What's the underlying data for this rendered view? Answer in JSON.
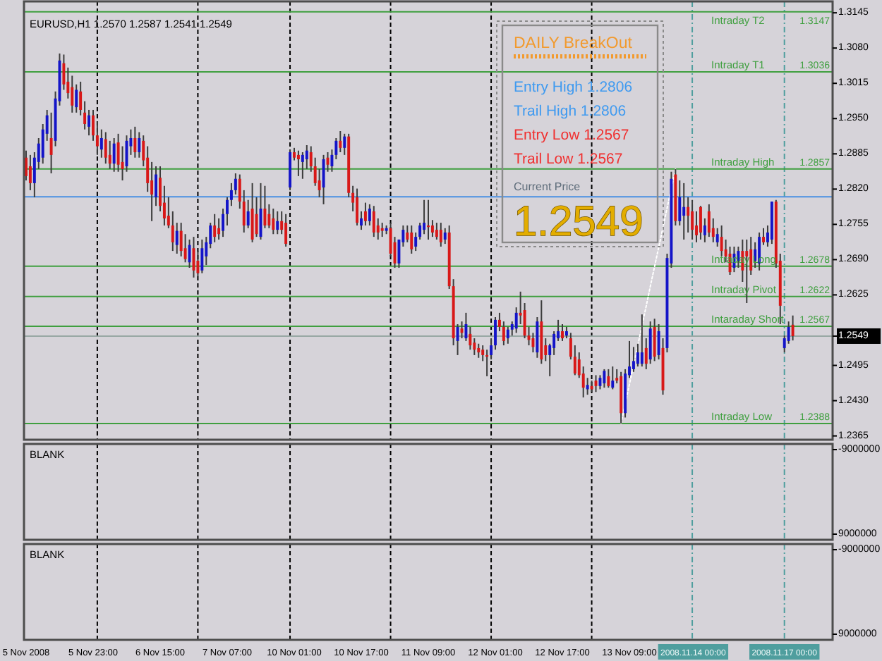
{
  "chart_data": [
    {
      "type": "candlestick",
      "title": "EURUSD,H1 1.2570 1.2587 1.2541 1.2549",
      "categories": [
        null,
        null,
        null,
        null,
        null,
        null,
        null,
        null,
        null,
        null,
        null,
        null,
        null,
        null,
        null,
        null,
        null,
        null,
        null,
        null,
        null,
        null,
        null,
        null,
        null,
        null,
        null,
        null,
        null,
        null,
        null,
        null,
        null,
        null,
        null,
        null,
        null,
        null,
        null,
        null,
        null,
        null,
        null,
        null,
        null,
        null,
        null,
        null,
        null,
        null,
        null,
        null,
        null,
        null,
        null,
        null,
        null,
        null,
        null,
        null,
        null,
        null,
        null,
        null,
        null,
        null,
        null,
        null,
        null,
        null,
        null,
        null,
        null,
        null,
        null,
        null,
        null,
        null,
        null,
        null,
        null,
        null,
        null,
        null,
        null,
        null,
        null,
        null,
        null,
        null,
        null,
        null,
        null,
        null,
        null,
        null,
        null,
        null,
        null,
        null,
        null,
        null,
        null,
        null,
        null,
        null,
        null,
        null,
        null,
        null,
        null,
        null,
        null,
        null,
        null,
        null,
        null,
        null,
        null,
        null,
        null,
        null,
        null,
        null,
        null,
        null,
        null,
        null,
        null,
        null,
        null,
        null,
        null,
        null,
        null,
        null,
        null,
        null,
        null,
        null,
        null,
        null,
        null,
        null,
        null,
        null,
        null,
        null,
        null,
        null,
        null,
        null,
        null,
        null,
        null,
        null,
        null,
        null,
        null,
        null,
        null,
        null,
        null,
        null,
        null,
        null,
        null,
        null,
        null,
        null,
        null,
        null,
        null,
        null,
        null,
        null,
        null,
        null,
        null,
        null,
        null,
        null,
        null,
        null,
        null,
        null,
        null,
        null,
        null,
        null,
        null,
        null,
        null
      ],
      "ohlc": [
        [
          1.2878,
          1.2891,
          1.2836,
          1.2844
        ],
        [
          1.2862,
          1.2883,
          1.2818,
          1.2831
        ],
        [
          1.2831,
          1.2888,
          1.2805,
          1.2878
        ],
        [
          1.287,
          1.2914,
          1.2857,
          1.2904
        ],
        [
          1.2878,
          1.294,
          1.2867,
          1.293
        ],
        [
          1.2922,
          1.2966,
          1.2909,
          1.2956
        ],
        [
          1.2914,
          1.2961,
          1.2849,
          1.2883
        ],
        [
          1.2909,
          1.3,
          1.2899,
          1.2987
        ],
        [
          1.2982,
          1.307,
          1.2974,
          1.3057
        ],
        [
          1.3052,
          1.3068,
          1.3003,
          1.3013
        ],
        [
          1.3018,
          1.3044,
          1.2987,
          1.2997
        ],
        [
          1.3008,
          1.3029,
          1.2961,
          1.2974
        ],
        [
          1.2971,
          1.3013,
          1.2961,
          1.3003
        ],
        [
          1.3,
          1.3018,
          1.2956,
          1.2966
        ],
        [
          1.2961,
          1.2982,
          1.293,
          1.294
        ],
        [
          1.2935,
          1.2966,
          1.2919,
          1.2956
        ],
        [
          1.2956,
          1.2966,
          1.2909,
          1.2919
        ],
        [
          1.2919,
          1.2945,
          1.2883,
          1.2899
        ],
        [
          1.2893,
          1.293,
          1.2878,
          1.2914
        ],
        [
          1.2912,
          1.2925,
          1.2867,
          1.2878
        ],
        [
          1.2883,
          1.2909,
          1.2857,
          1.2867
        ],
        [
          1.2867,
          1.2914,
          1.2852,
          1.2904
        ],
        [
          1.2906,
          1.2922,
          1.2852,
          1.2865
        ],
        [
          1.287,
          1.2899,
          1.2836,
          1.2857
        ],
        [
          1.2862,
          1.2919,
          1.2852,
          1.2909
        ],
        [
          1.2899,
          1.293,
          1.2883,
          1.2914
        ],
        [
          1.2914,
          1.2935,
          1.2878,
          1.2888
        ],
        [
          1.2888,
          1.2925,
          1.2878,
          1.2914
        ],
        [
          1.2909,
          1.2919,
          1.2862,
          1.2873
        ],
        [
          1.2878,
          1.2899,
          1.2815,
          1.2831
        ],
        [
          1.2836,
          1.287,
          1.2761,
          1.281
        ],
        [
          1.2805,
          1.2862,
          1.2789,
          1.2847
        ],
        [
          1.2841,
          1.2862,
          1.2779,
          1.2789
        ],
        [
          1.2795,
          1.2826,
          1.2753,
          1.2766
        ],
        [
          1.2771,
          1.2805,
          1.2748,
          1.2753
        ],
        [
          1.2753,
          1.2779,
          1.2706,
          1.2722
        ],
        [
          1.2717,
          1.2758,
          1.2701,
          1.2743
        ],
        [
          1.2743,
          1.2758,
          1.2696,
          1.2706
        ],
        [
          1.2711,
          1.2737,
          1.2685,
          1.2691
        ],
        [
          1.2685,
          1.2727,
          1.2675,
          1.2717
        ],
        [
          1.2711,
          1.2732,
          1.2657,
          1.267
        ],
        [
          1.2688,
          1.2706,
          1.2659,
          1.2665
        ],
        [
          1.267,
          1.2727,
          1.2665,
          1.2711
        ],
        [
          1.2696,
          1.2732,
          1.268,
          1.2722
        ],
        [
          1.2719,
          1.2758,
          1.2711,
          1.2753
        ],
        [
          1.2753,
          1.2774,
          1.2722,
          1.2732
        ],
        [
          1.2748,
          1.2766,
          1.2727,
          1.2737
        ],
        [
          1.2743,
          1.2784,
          1.2732,
          1.2774
        ],
        [
          1.2774,
          1.2805,
          1.2753,
          1.28
        ],
        [
          1.28,
          1.2831,
          1.2789,
          1.2818
        ],
        [
          1.2818,
          1.2849,
          1.281,
          1.2839
        ],
        [
          1.2839,
          1.2847,
          1.2784,
          1.2797
        ],
        [
          1.2797,
          1.2818,
          1.274,
          1.2753
        ],
        [
          1.2753,
          1.28,
          1.2748,
          1.2779
        ],
        [
          1.2784,
          1.2831,
          1.2722,
          1.2727
        ],
        [
          1.2774,
          1.2805,
          1.2732,
          1.2737
        ],
        [
          1.2732,
          1.2831,
          1.2727,
          1.2784
        ],
        [
          1.2784,
          1.2826,
          1.2748,
          1.2753
        ],
        [
          1.2774,
          1.2792,
          1.2748,
          1.2753
        ],
        [
          1.2766,
          1.2784,
          1.2737,
          1.2745
        ],
        [
          1.2745,
          1.2779,
          1.2737,
          1.2761
        ],
        [
          1.2761,
          1.2779,
          1.2737,
          1.2745
        ],
        [
          1.2758,
          1.2774,
          1.2714,
          1.2719
        ],
        [
          1.2823,
          1.2893,
          1.2818,
          1.2888
        ],
        [
          1.2888,
          1.2896,
          1.2873,
          1.2878
        ],
        [
          1.2883,
          1.2891,
          1.2844,
          1.2875
        ],
        [
          1.287,
          1.2888,
          1.2839,
          1.2883
        ],
        [
          1.2875,
          1.2901,
          1.2857,
          1.2891
        ],
        [
          1.2888,
          1.2899,
          1.2852,
          1.2862
        ],
        [
          1.2862,
          1.2878,
          1.2826,
          1.2831
        ],
        [
          1.2836,
          1.2857,
          1.2805,
          1.2818
        ],
        [
          1.2823,
          1.2883,
          1.2792,
          1.2875
        ],
        [
          1.2878,
          1.2888,
          1.2852,
          1.2865
        ],
        [
          1.2862,
          1.2893,
          1.2852,
          1.2883
        ],
        [
          1.2883,
          1.2914,
          1.2875,
          1.2909
        ],
        [
          1.2909,
          1.2927,
          1.2888,
          1.2896
        ],
        [
          1.2896,
          1.2922,
          1.2883,
          1.2917
        ],
        [
          1.2917,
          1.2922,
          1.2805,
          1.2813
        ],
        [
          1.2813,
          1.2826,
          1.2779,
          1.2795
        ],
        [
          1.2805,
          1.2821,
          1.2753,
          1.2758
        ],
        [
          1.2753,
          1.2779,
          1.2745,
          1.2766
        ],
        [
          1.2779,
          1.2795,
          1.2753,
          1.2761
        ],
        [
          1.2761,
          1.2792,
          1.2753,
          1.2784
        ],
        [
          1.2779,
          1.2789,
          1.2732,
          1.274
        ],
        [
          1.2753,
          1.2766,
          1.2727,
          1.274
        ],
        [
          1.2748,
          1.2758,
          1.2732,
          1.2743
        ],
        [
          1.2743,
          1.2753,
          1.2737,
          1.2748
        ],
        [
          1.2748,
          1.2758,
          1.2696,
          1.2701
        ],
        [
          1.2722,
          1.2732,
          1.2675,
          1.2683
        ],
        [
          1.2683,
          1.2727,
          1.2675,
          1.2727
        ],
        [
          1.2722,
          1.2753,
          1.2714,
          1.2745
        ],
        [
          1.274,
          1.2753,
          1.2722,
          1.2727
        ],
        [
          1.274,
          1.2753,
          1.2701,
          1.2709
        ],
        [
          1.2714,
          1.274,
          1.2706,
          1.2732
        ],
        [
          1.2732,
          1.2758,
          1.2727,
          1.2753
        ],
        [
          1.2745,
          1.28,
          1.2737,
          1.2758
        ],
        [
          1.2753,
          1.28,
          1.2727,
          1.275
        ],
        [
          1.2753,
          1.2763,
          1.2732,
          1.274
        ],
        [
          1.2745,
          1.2758,
          1.2727,
          1.2732
        ],
        [
          1.2745,
          1.2758,
          1.2714,
          1.2722
        ],
        [
          1.2727,
          1.2748,
          1.2719,
          1.274
        ],
        [
          1.274,
          1.2753,
          1.2636,
          1.2641
        ],
        [
          1.2641,
          1.2654,
          1.2532,
          1.2545
        ],
        [
          1.254,
          1.2571,
          1.2514,
          1.2566
        ],
        [
          1.2563,
          1.2576,
          1.2545,
          1.2555
        ],
        [
          1.2545,
          1.2592,
          1.254,
          1.2571
        ],
        [
          1.2553,
          1.2566,
          1.2524,
          1.2532
        ],
        [
          1.2537,
          1.2545,
          1.2514,
          1.2524
        ],
        [
          1.2527,
          1.2535,
          1.2509,
          1.2519
        ],
        [
          1.2524,
          1.2532,
          1.2503,
          1.2514
        ],
        [
          1.2514,
          1.2524,
          1.2475,
          1.2511
        ],
        [
          1.2514,
          1.2545,
          1.2506,
          1.2532
        ],
        [
          1.2532,
          1.2584,
          1.2524,
          1.2579
        ],
        [
          1.2579,
          1.2592,
          1.2558,
          1.2566
        ],
        [
          1.2566,
          1.2576,
          1.2532,
          1.254
        ],
        [
          1.2545,
          1.2566,
          1.2535,
          1.2561
        ],
        [
          1.2561,
          1.2576,
          1.255,
          1.2571
        ],
        [
          1.2563,
          1.2602,
          1.2555,
          1.2592
        ],
        [
          1.2592,
          1.2631,
          1.2571,
          1.2587
        ],
        [
          1.2597,
          1.261,
          1.2545,
          1.255
        ],
        [
          1.255,
          1.2566,
          1.2532,
          1.2542
        ],
        [
          1.2545,
          1.2555,
          1.2519,
          1.2529
        ],
        [
          1.2519,
          1.2584,
          1.2509,
          1.2576
        ],
        [
          1.2576,
          1.2615,
          1.2498,
          1.2506
        ],
        [
          1.2532,
          1.2545,
          1.2503,
          1.2514
        ],
        [
          1.2514,
          1.2535,
          1.2475,
          1.2532
        ],
        [
          1.2527,
          1.2558,
          1.2514,
          1.2553
        ],
        [
          1.2545,
          1.2579,
          1.254,
          1.2558
        ],
        [
          1.2558,
          1.2571,
          1.254,
          1.2545
        ],
        [
          1.255,
          1.2566,
          1.2545,
          1.2558
        ],
        [
          1.2545,
          1.2555,
          1.2506,
          1.2511
        ],
        [
          1.2511,
          1.2532,
          1.2477,
          1.248
        ],
        [
          1.2506,
          1.2519,
          1.2472,
          1.2477
        ],
        [
          1.248,
          1.2493,
          1.2436,
          1.2454
        ],
        [
          1.2451,
          1.2472,
          1.2441,
          1.2459
        ],
        [
          1.2457,
          1.2467,
          1.2446,
          1.2451
        ],
        [
          1.2467,
          1.2477,
          1.2446,
          1.2457
        ],
        [
          1.2457,
          1.2477,
          1.2451,
          1.2472
        ],
        [
          1.2462,
          1.2488,
          1.2454,
          1.2485
        ],
        [
          1.2475,
          1.2488,
          1.2454,
          1.2457
        ],
        [
          1.2454,
          1.2493,
          1.2451,
          1.2467
        ],
        [
          1.2472,
          1.2488,
          1.2462,
          1.2467
        ],
        [
          1.2475,
          1.2483,
          1.2388,
          1.2407
        ],
        [
          1.2407,
          1.2488,
          1.2399,
          1.248
        ],
        [
          1.2477,
          1.254,
          1.2472,
          1.2493
        ],
        [
          1.2488,
          1.2529,
          1.2483,
          1.2503
        ],
        [
          1.2498,
          1.2535,
          1.2493,
          1.2519
        ],
        [
          1.2498,
          1.2589,
          1.2493,
          1.2519
        ],
        [
          1.2527,
          1.2545,
          1.2488,
          1.2498
        ],
        [
          1.2506,
          1.2576,
          1.2498,
          1.2563
        ],
        [
          1.2566,
          1.2581,
          1.2503,
          1.2511
        ],
        [
          1.2514,
          1.2571,
          1.2506,
          1.2558
        ],
        [
          1.2527,
          1.2545,
          1.2441,
          1.2449
        ],
        [
          1.2527,
          1.2701,
          1.2519,
          1.2693
        ],
        [
          1.2683,
          1.2852,
          1.2675,
          1.2839
        ],
        [
          1.2847,
          1.2857,
          1.2753,
          1.2761
        ],
        [
          1.2761,
          1.2836,
          1.2753,
          1.2805
        ],
        [
          1.2771,
          1.2831,
          1.2727,
          1.2787
        ],
        [
          1.2787,
          1.2805,
          1.274,
          1.2771
        ],
        [
          1.2779,
          1.28,
          1.2727,
          1.2745
        ],
        [
          1.2753,
          1.2779,
          1.2722,
          1.2735
        ],
        [
          1.2787,
          1.2789,
          1.2727,
          1.274
        ],
        [
          1.2735,
          1.2766,
          1.2722,
          1.2753
        ],
        [
          1.2779,
          1.2792,
          1.2732,
          1.274
        ],
        [
          1.2748,
          1.2766,
          1.2722,
          1.2732
        ],
        [
          1.2722,
          1.2748,
          1.2714,
          1.2737
        ],
        [
          1.2732,
          1.2753,
          1.2696,
          1.2706
        ],
        [
          1.2709,
          1.2727,
          1.2685,
          1.2696
        ],
        [
          1.2701,
          1.2714,
          1.2662,
          1.2667
        ],
        [
          1.2675,
          1.2714,
          1.2667,
          1.2701
        ],
        [
          1.2688,
          1.2714,
          1.2675,
          1.2706
        ],
        [
          1.2706,
          1.2727,
          1.2649,
          1.267
        ],
        [
          1.2706,
          1.2727,
          1.261,
          1.2696
        ],
        [
          1.2709,
          1.2732,
          1.2662,
          1.267
        ],
        [
          1.2688,
          1.2722,
          1.2675,
          1.2709
        ],
        [
          1.2683,
          1.274,
          1.267,
          1.2732
        ],
        [
          1.2732,
          1.2748,
          1.2717,
          1.2722
        ],
        [
          1.2722,
          1.2753,
          1.2714,
          1.274
        ],
        [
          1.2727,
          1.2797,
          1.2719,
          1.2797
        ],
        [
          1.2797,
          1.28,
          1.2675,
          1.2683
        ],
        [
          1.2688,
          1.2701,
          1.2571,
          1.2605
        ],
        [
          1.2527,
          1.255,
          1.2519,
          1.2545
        ],
        [
          1.254,
          1.2576,
          1.2535,
          1.2566
        ],
        [
          1.257,
          1.2587,
          1.2541,
          1.2549
        ],
        null,
        null,
        null,
        null,
        null,
        null,
        null,
        null,
        null
      ],
      "colors": [
        "#d81818",
        "#d81818",
        "#1414c8",
        "#1414c8",
        "#1414c8",
        "#1414c8",
        "#d81818",
        "#1414c8",
        "#1414c8",
        "#d81818",
        "#d81818",
        "#d81818",
        "#1414c8",
        "#d81818",
        "#d81818",
        "#1414c8",
        "#d81818",
        "#d81818",
        "#1414c8",
        "#d81818",
        "#d81818",
        "#1414c8",
        "#d81818",
        "#d81818",
        "#1414c8",
        "#1414c8",
        "#d81818",
        "#1414c8",
        "#d81818",
        "#d81818",
        "#d81818",
        "#1414c8",
        "#d81818",
        "#d81818",
        "#d81818",
        "#d81818",
        "#1414c8",
        "#d81818",
        "#d81818",
        "#1414c8",
        "#d81818",
        "#d81818",
        "#1414c8",
        "#1414c8",
        "#1414c8",
        "#d81818",
        "#d81818",
        "#1414c8",
        "#1414c8",
        "#1414c8",
        "#1414c8",
        "#d81818",
        "#d81818",
        "#1414c8",
        "#d81818",
        "#d81818",
        "#1414c8",
        "#d81818",
        "#d81818",
        "#d81818",
        "#1414c8",
        "#d81818",
        "#d81818",
        "#1414c8",
        "#d81818",
        "#d81818",
        "#1414c8",
        "#1414c8",
        "#d81818",
        "#d81818",
        "#d81818",
        "#1414c8",
        "#d81818",
        "#1414c8",
        "#1414c8",
        "#d81818",
        "#1414c8",
        "#d81818",
        "#d81818",
        "#d81818",
        "#1414c8",
        "#d81818",
        "#1414c8",
        "#d81818",
        "#d81818",
        "#d81818",
        "#1414c8",
        "#d81818",
        "#d81818",
        "#1414c8",
        "#1414c8",
        "#d81818",
        "#d81818",
        "#1414c8",
        "#1414c8",
        "#1414c8",
        "#d81818",
        "#d81818",
        "#d81818",
        "#d81818",
        "#1414c8",
        "#d81818",
        "#d81818",
        "#1414c8",
        "#d81818",
        "#1414c8",
        "#d81818",
        "#d81818",
        "#d81818",
        "#d81818",
        "#d81818",
        "#1414c8",
        "#1414c8",
        "#d81818",
        "#d81818",
        "#1414c8",
        "#1414c8",
        "#1414c8",
        "#d81818",
        "#d81818",
        "#d81818",
        "#d81818",
        "#1414c8",
        "#d81818",
        "#d81818",
        "#1414c8",
        "#1414c8",
        "#1414c8",
        "#d81818",
        "#1414c8",
        "#d81818",
        "#d81818",
        "#d81818",
        "#d81818",
        "#1414c8",
        "#d81818",
        "#d81818",
        "#1414c8",
        "#1414c8",
        "#d81818",
        "#1414c8",
        "#d81818",
        "#d81818",
        "#1414c8",
        "#1414c8",
        "#1414c8",
        "#1414c8",
        "#1414c8",
        "#d81818",
        "#1414c8",
        "#d81818",
        "#1414c8",
        "#d81818",
        "#1414c8",
        "#1414c8",
        "#d81818",
        "#1414c8",
        "#1414c8",
        "#d81818",
        "#d81818",
        "#d81818",
        "#d81818",
        "#1414c8",
        "#d81818",
        "#d81818",
        "#1414c8",
        "#d81818",
        "#d81818",
        "#d81818",
        "#1414c8",
        "#1414c8",
        "#d81818",
        "#d81818",
        "#d81818",
        "#1414c8",
        "#1414c8",
        "#d81818",
        "#1414c8",
        "#1414c8",
        "#d81818",
        "#d81818",
        "#1414c8",
        "#1414c8",
        "#d81818",
        null,
        null,
        null,
        null,
        null,
        null,
        null,
        null,
        null
      ],
      "ylim": [
        1.2358,
        1.3166
      ],
      "yticks": [
        1.2365,
        {
          "value": 1.243,
          "label": "1.2430"
        },
        1.2495,
        1.2549,
        1.2625,
        {
          "value": 1.269,
          "label": "1.2690"
        },
        1.2755,
        {
          "value": 1.282,
          "label": "1.2820"
        },
        1.2885,
        {
          "value": 1.295,
          "label": "1.2950"
        },
        1.3015,
        {
          "value": 1.308,
          "label": "1.3080"
        },
        1.3145
      ],
      "tick_labels": "y",
      "series": [
        {
          "type": "line",
          "color": "#ffffff",
          "line_style": "dotted",
          "values": [
            null,
            null,
            null,
            null,
            null,
            null,
            null,
            null,
            null,
            null,
            null,
            null,
            null,
            null,
            null,
            null,
            null,
            null,
            null,
            null,
            null,
            null,
            null,
            null,
            null,
            null,
            null,
            null,
            null,
            null,
            null,
            null,
            null,
            null,
            null,
            null,
            null,
            null,
            null,
            null,
            null,
            null,
            null,
            null,
            null,
            null,
            null,
            null,
            null,
            null,
            null,
            null,
            null,
            null,
            null,
            null,
            null,
            null,
            null,
            null,
            null,
            null,
            null,
            null,
            null,
            null,
            null,
            null,
            null,
            null,
            null,
            null,
            null,
            null,
            null,
            null,
            null,
            null,
            null,
            null,
            null,
            null,
            null,
            null,
            null,
            null,
            null,
            null,
            null,
            null,
            null,
            null,
            null,
            null,
            null,
            null,
            null,
            null,
            null,
            null,
            null,
            null,
            null,
            null,
            null,
            null,
            null,
            null,
            null,
            null,
            null,
            null,
            null,
            null,
            null,
            null,
            null,
            null,
            null,
            null,
            null,
            null,
            null,
            null,
            null,
            null,
            null,
            null,
            null,
            null,
            null,
            null,
            null,
            null,
            null,
            null,
            null,
            null,
            null,
            null,
            null,
            null,
            1.2388,
            1.2424,
            1.246,
            1.2496,
            1.2532,
            1.2568,
            1.2604,
            1.2641,
            1.2677,
            1.2713,
            1.2749,
            1.2785,
            1.2821,
            1.2857,
            null,
            null,
            null,
            null,
            null,
            null,
            null,
            null,
            null,
            null,
            null,
            null,
            null,
            null,
            null,
            null,
            null,
            null,
            null,
            null,
            null,
            null,
            null,
            null,
            null,
            null,
            null,
            null,
            null,
            null,
            null,
            null,
            null,
            null,
            null,
            null,
            null
          ]
        }
      ],
      "ref_lines": [
        {
          "axis": "y",
          "value": 1.2549,
          "color": "#98a8a4"
        },
        {
          "axis": "y",
          "value": 1.3147,
          "label": "Intraday T2",
          "color": "#3f9f3f"
        },
        {
          "axis": "y",
          "value": 1.3036,
          "label": "Intraday T1",
          "color": "#3f9f3f"
        },
        {
          "axis": "y",
          "value": 1.2857,
          "label": "Intraday High",
          "color": "#3f9f3f"
        },
        {
          "axis": "y",
          "value": 1.2678,
          "label": "Intraday Long",
          "color": "#3f9f3f"
        },
        {
          "axis": "y",
          "value": 1.2622,
          "label": "Intraday Pivot",
          "color": "#3f9f3f"
        },
        {
          "axis": "y",
          "value": 1.2567,
          "label": "Intaraday Short",
          "color": "#3f9f3f"
        },
        {
          "axis": "y",
          "value": 1.2388,
          "label": "Intraday Low",
          "color": "#3f9f3f"
        },
        {
          "axis": "y",
          "value": 1.2806,
          "color": "#4a90e2"
        }
      ],
      "annotations": [
        "DAILY BreakOut",
        "Entry High 1.2806",
        "Trail High 1.2806",
        "Entry Low 1.2567",
        "Trail Low 1.2567",
        "Current Price",
        "1.2549",
        {
          "text": "1.3147",
          "y": 1.3147
        },
        {
          "text": "1.3036",
          "y": 1.3036
        },
        {
          "text": "1.2857",
          "y": 1.2857
        },
        {
          "text": "1.2678",
          "y": 1.2678
        },
        {
          "text": "1.2622",
          "y": 1.2622
        },
        {
          "text": "1.2567",
          "y": 1.2567
        },
        {
          "text": "1.2388",
          "y": 1.2388
        }
      ]
    },
    {
      "type": "line",
      "title": "BLANK",
      "categories": [
        null,
        null,
        null,
        null,
        null,
        null,
        null,
        null,
        null,
        null,
        null,
        null,
        null,
        null,
        null,
        null,
        null,
        null,
        null,
        null,
        null,
        null,
        null,
        null,
        null,
        null,
        null,
        null,
        null,
        null,
        null,
        null,
        null,
        null,
        null,
        null,
        null,
        null,
        null,
        null,
        null,
        null,
        null,
        null,
        null,
        null,
        null,
        null,
        null,
        null,
        null,
        null,
        null,
        null,
        null,
        null,
        null,
        null,
        null,
        null,
        null,
        null,
        null,
        null,
        null,
        null,
        null,
        null,
        null,
        null,
        null,
        null,
        null,
        null,
        null,
        null,
        null,
        null,
        null,
        null,
        null,
        null,
        null,
        null,
        null,
        null,
        null,
        null,
        null,
        null,
        null,
        null,
        null,
        null,
        null,
        null,
        null,
        null,
        null,
        null,
        null,
        null,
        null,
        null,
        null,
        null,
        null,
        null,
        null,
        null,
        null,
        null,
        null,
        null,
        null,
        null,
        null,
        null,
        null,
        null,
        null,
        null,
        null,
        null,
        null,
        null,
        null,
        null,
        null,
        null,
        null,
        null,
        null,
        null,
        null,
        null,
        null,
        null,
        null,
        null,
        null,
        null,
        null,
        null,
        null,
        null,
        null,
        null,
        null,
        null,
        null,
        null,
        null,
        null,
        null,
        null,
        null,
        null,
        null,
        null,
        null,
        null,
        null,
        null,
        null,
        null,
        null,
        null,
        null,
        null,
        null,
        null,
        null,
        null,
        null,
        null,
        null,
        null,
        null,
        null,
        null,
        null,
        null,
        null,
        null,
        null,
        null,
        null,
        null,
        null,
        null,
        null,
        null
      ],
      "ylim": [
        10200000,
        -10200000
      ],
      "yticks": [
        -9000000,
        9000000
      ],
      "tick_labels": "y"
    },
    {
      "type": "line",
      "title": "BLANK",
      "categories": [
        "5 Nov 2008",
        null,
        null,
        null,
        null,
        null,
        null,
        null,
        null,
        null,
        null,
        null,
        null,
        null,
        null,
        null,
        "5 Nov 23:00",
        null,
        null,
        null,
        null,
        null,
        null,
        null,
        null,
        null,
        null,
        null,
        null,
        null,
        null,
        null,
        "6 Nov 15:00",
        null,
        null,
        null,
        null,
        null,
        null,
        null,
        null,
        null,
        null,
        null,
        null,
        null,
        null,
        null,
        "7 Nov 07:00",
        null,
        null,
        null,
        null,
        null,
        null,
        null,
        null,
        null,
        null,
        null,
        null,
        null,
        null,
        null,
        "10 Nov 01:00",
        null,
        null,
        null,
        null,
        null,
        null,
        null,
        null,
        null,
        null,
        null,
        null,
        null,
        null,
        null,
        "10 Nov 17:00",
        null,
        null,
        null,
        null,
        null,
        null,
        null,
        null,
        null,
        null,
        null,
        null,
        null,
        null,
        null,
        "11 Nov 09:00",
        null,
        null,
        null,
        null,
        null,
        null,
        null,
        null,
        null,
        null,
        null,
        null,
        null,
        null,
        null,
        "12 Nov 01:00",
        null,
        null,
        null,
        null,
        null,
        null,
        null,
        null,
        null,
        null,
        null,
        null,
        null,
        null,
        null,
        "12 Nov 17:00",
        null,
        null,
        null,
        null,
        null,
        null,
        null,
        null,
        null,
        null,
        null,
        null,
        null,
        null,
        null,
        "13 Nov 09:00",
        null,
        null,
        null,
        null,
        null,
        null,
        null,
        null,
        null,
        null,
        null,
        null,
        null,
        null,
        "2008.11.14 00:00",
        null,
        null,
        null,
        null,
        null,
        null,
        null,
        null,
        null,
        null,
        null,
        null,
        null,
        null,
        null,
        null,
        null,
        null,
        null,
        null,
        null,
        "2008.11.17 00:00",
        null,
        null,
        null,
        null,
        null,
        null,
        null,
        null,
        null,
        null,
        null
      ],
      "ylim": [
        10200000,
        -10200000
      ],
      "yticks": [
        -9000000,
        9000000
      ]
    }
  ]
}
